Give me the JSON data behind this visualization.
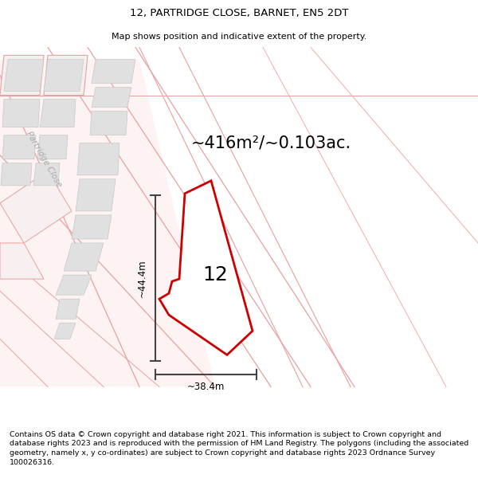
{
  "title_line1": "12, PARTRIDGE CLOSE, BARNET, EN5 2DT",
  "title_line2": "Map shows position and indicative extent of the property.",
  "area_text": "~416m²/~0.103ac.",
  "number_label": "12",
  "dim_vertical": "~44.4m",
  "dim_horizontal": "~38.4m",
  "footer_text": "Contains OS data © Crown copyright and database right 2021. This information is subject to Crown copyright and database rights 2023 and is reproduced with the permission of HM Land Registry. The polygons (including the associated geometry, namely x, y co-ordinates) are subject to Crown copyright and database rights 2023 Ordnance Survey 100026316.",
  "bg_color": "#ffffff",
  "road_fill_color": "#fce8e8",
  "road_line_color": "#e8a0a0",
  "building_fill_color": "#e0e0e0",
  "building_edge_color": "#c8c8c8",
  "plot_outline_color": "#cc0000",
  "dim_line_color": "#444444",
  "street_label_color": "#aaaaaa",
  "title_fontsize": 9.5,
  "subtitle_fontsize": 8.0,
  "area_fontsize": 15,
  "number_fontsize": 18,
  "dim_fontsize": 8.5,
  "footer_fontsize": 6.8,
  "street_label_fontsize": 7.5
}
